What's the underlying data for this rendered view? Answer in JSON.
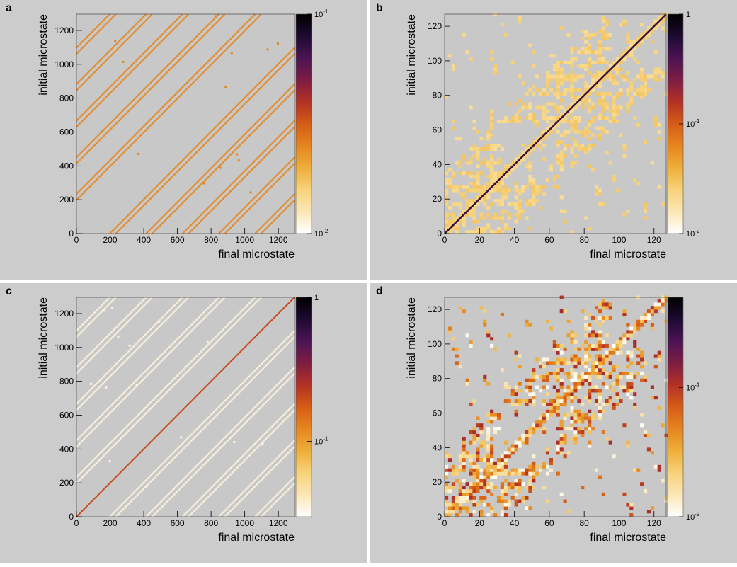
{
  "colors": {
    "panel_bg": "#cccccc",
    "plot_bg": "#c8c8c8",
    "text": "#000000",
    "colormap": [
      "#ffffff",
      "#fbe7b6",
      "#f7d27a",
      "#eeae3a",
      "#e5861f",
      "#d65c17",
      "#b23125",
      "#7d1d42",
      "#4b1454",
      "#1c0a30",
      "#000000"
    ]
  },
  "chart_data": [
    {
      "panel_label": "a",
      "type": "heatmap",
      "xlabel": "final microstate",
      "ylabel": "initial microstate",
      "xlim": [
        0,
        1296
      ],
      "ylim": [
        0,
        1296
      ],
      "x_ticks": [
        "0",
        "200",
        "400",
        "600",
        "800",
        "1000",
        "1200"
      ],
      "y_ticks": [
        "0",
        "200",
        "400",
        "600",
        "800",
        "1000",
        "1200"
      ],
      "colorbar": {
        "scale": "log",
        "min": 0.01,
        "max": 0.1,
        "ticks": [
          "10^-1",
          "10^-2"
        ]
      },
      "description_values": {
        "offdiagonal_level": 0.025,
        "diagonal_level": null
      },
      "diagonal_offsets": [
        -1080,
        -864,
        -648,
        -432,
        -216,
        216,
        432,
        648,
        864,
        1080
      ],
      "band_width": 36
    },
    {
      "panel_label": "b",
      "type": "heatmap",
      "xlabel": "final microstate",
      "ylabel": "initial microstate",
      "xlim": [
        0,
        127
      ],
      "ylim": [
        0,
        127
      ],
      "x_ticks": [
        "0",
        "20",
        "40",
        "60",
        "80",
        "100",
        "120"
      ],
      "y_ticks": [
        "0",
        "20",
        "40",
        "60",
        "80",
        "100",
        "120"
      ],
      "colorbar": {
        "scale": "log",
        "min": 0.01,
        "max": 1,
        "ticks": [
          "1",
          "10^-1",
          "10^-2"
        ]
      },
      "description_values": {
        "offdiagonal_level": 0.025,
        "diagonal_level": 0.5
      }
    },
    {
      "panel_label": "c",
      "type": "heatmap",
      "xlabel": "final microstate",
      "ylabel": "initial microstate",
      "xlim": [
        0,
        1296
      ],
      "ylim": [
        0,
        1296
      ],
      "x_ticks": [
        "0",
        "200",
        "400",
        "600",
        "800",
        "1000",
        "1200"
      ],
      "y_ticks": [
        "0",
        "200",
        "400",
        "600",
        "800",
        "1000",
        "1200"
      ],
      "colorbar": {
        "scale": "log",
        "min": 0.03,
        "max": 1,
        "ticks": [
          "1",
          "10^-1"
        ]
      },
      "description_values": {
        "offdiagonal_level": 0.035,
        "diagonal_level": 0.2
      }
    },
    {
      "panel_label": "d",
      "type": "heatmap",
      "xlabel": "final microstate",
      "ylabel": "initial microstate",
      "xlim": [
        0,
        127
      ],
      "ylim": [
        0,
        127
      ],
      "x_ticks": [
        "0",
        "20",
        "40",
        "60",
        "80",
        "100",
        "120"
      ],
      "y_ticks": [
        "0",
        "20",
        "40",
        "60",
        "80",
        "100",
        "120"
      ],
      "colorbar": {
        "scale": "log",
        "min": 0.01,
        "max": 0.5,
        "ticks": [
          "10^-1",
          "10^-2"
        ]
      },
      "description_values": {
        "offdiagonal_level_range": [
          0.01,
          0.15
        ]
      }
    }
  ]
}
